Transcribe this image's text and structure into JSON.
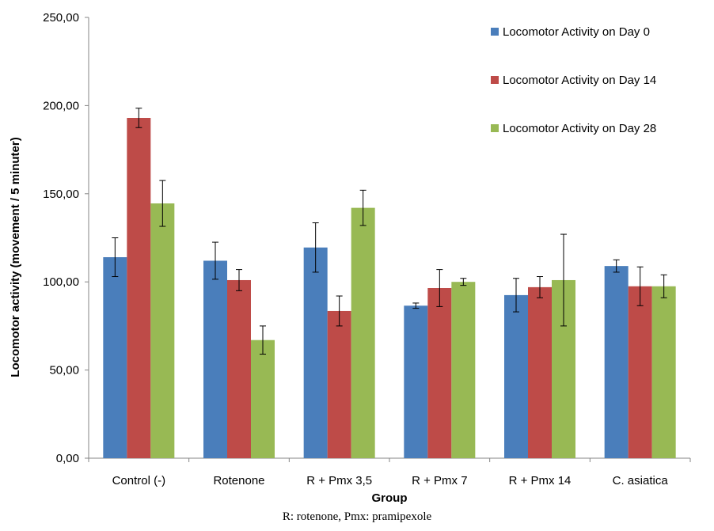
{
  "chart_data": {
    "type": "bar",
    "title": "",
    "xlabel": "Group",
    "ylabel": "Locomotor activity (movement / 5 minuter)",
    "ylim": [
      0,
      250
    ],
    "yticks": [
      0,
      50,
      100,
      150,
      200,
      250
    ],
    "ytick_labels": [
      "0,00",
      "50,00",
      "100,00",
      "150,00",
      "200,00",
      "250,00"
    ],
    "grid": false,
    "legend_position": "top-right",
    "categories": [
      "Control (-)",
      "Rotenone",
      "R + Pmx 3,5",
      "R + Pmx 7",
      "R + Pmx  14",
      "C. asiatica"
    ],
    "series": [
      {
        "name": "Locomotor Activity on Day 0",
        "color": "#4a7ebb",
        "values": [
          114,
          112,
          119.5,
          86.5,
          92.5,
          109
        ],
        "errors": [
          11,
          10.5,
          14,
          1.5,
          9.5,
          3.5
        ]
      },
      {
        "name": "Locomotor Activity on Day 14",
        "color": "#be4b48",
        "values": [
          193,
          101,
          83.5,
          96.5,
          97,
          97.5
        ],
        "errors": [
          5.5,
          6,
          8.5,
          10.5,
          6,
          11
        ]
      },
      {
        "name": "Locomotor Activity on Day 28",
        "color": "#98b954",
        "values": [
          144.5,
          67,
          142,
          100,
          101,
          97.5
        ],
        "errors": [
          13,
          8,
          10,
          2,
          26,
          6.5
        ]
      }
    ]
  },
  "footnote": "R: rotenone, Pmx: pramipexole"
}
